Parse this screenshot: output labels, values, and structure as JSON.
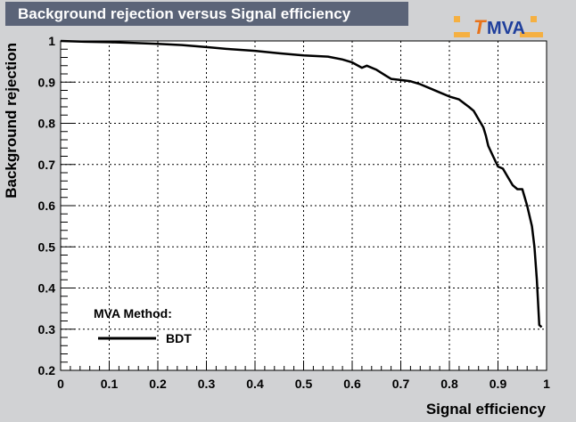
{
  "header": {
    "title": "Background rejection versus Signal efficiency"
  },
  "logo": {
    "text_t": "T",
    "text_mva": "MVA",
    "accent": "#e8731a",
    "ink": "#1f3f9c"
  },
  "legend": {
    "header": "MVA Method:",
    "entries": [
      {
        "label": "BDT"
      }
    ]
  },
  "chart_data": {
    "type": "line",
    "title": "Background rejection versus Signal efficiency",
    "xlabel": "Signal efficiency",
    "ylabel": "Background rejection",
    "xlim": [
      0,
      1
    ],
    "ylim": [
      0.2,
      1
    ],
    "xticks": [
      "0",
      "0.1",
      "0.2",
      "0.3",
      "0.4",
      "0.5",
      "0.6",
      "0.7",
      "0.8",
      "0.9",
      "1"
    ],
    "yticks": [
      "0.2",
      "0.3",
      "0.4",
      "0.5",
      "0.6",
      "0.7",
      "0.8",
      "0.9",
      "1"
    ],
    "grid": true,
    "legend_position": "bottom-left",
    "series": [
      {
        "name": "BDT",
        "color": "#000000",
        "x": [
          0.0,
          0.05,
          0.1,
          0.15,
          0.2,
          0.25,
          0.3,
          0.35,
          0.4,
          0.45,
          0.5,
          0.55,
          0.58,
          0.6,
          0.62,
          0.63,
          0.65,
          0.67,
          0.68,
          0.7,
          0.72,
          0.74,
          0.76,
          0.78,
          0.8,
          0.82,
          0.84,
          0.85,
          0.86,
          0.87,
          0.875,
          0.88,
          0.89,
          0.9,
          0.91,
          0.92,
          0.93,
          0.94,
          0.95,
          0.96,
          0.97,
          0.975,
          0.98,
          0.985,
          0.99
        ],
        "y": [
          1.0,
          0.998,
          0.997,
          0.995,
          0.993,
          0.99,
          0.985,
          0.98,
          0.976,
          0.97,
          0.965,
          0.962,
          0.955,
          0.948,
          0.935,
          0.94,
          0.93,
          0.915,
          0.908,
          0.905,
          0.902,
          0.895,
          0.885,
          0.875,
          0.865,
          0.858,
          0.84,
          0.83,
          0.81,
          0.79,
          0.77,
          0.745,
          0.72,
          0.695,
          0.69,
          0.67,
          0.65,
          0.64,
          0.64,
          0.6,
          0.55,
          0.5,
          0.42,
          0.31,
          0.305
        ]
      }
    ]
  }
}
